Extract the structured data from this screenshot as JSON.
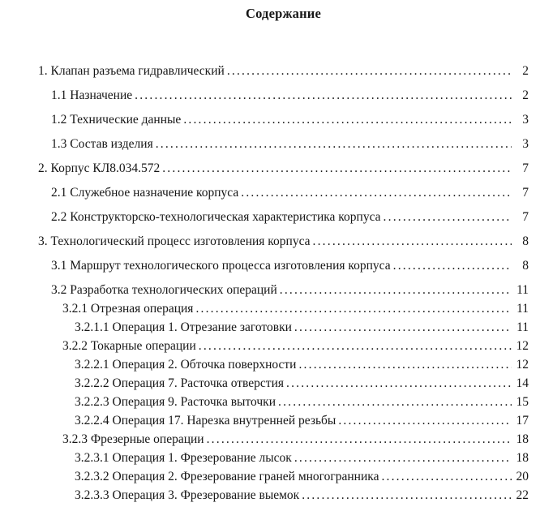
{
  "theme": {
    "text_color": "#161616",
    "background_color": "#ffffff"
  },
  "document": {
    "title": "Содержание",
    "toc": [
      {
        "label": "1. Клапан разъема гидравлический",
        "page": "2",
        "level": 1,
        "group": "wide"
      },
      {
        "label": "1.1 Назначение",
        "page": "2",
        "level": 2,
        "group": "wide"
      },
      {
        "label": "1.2 Технические данные",
        "page": "3",
        "level": 2,
        "group": "wide"
      },
      {
        "label": "1.3 Состав изделия",
        "page": "3",
        "level": 2,
        "group": "wide"
      },
      {
        "label": "2. Корпус КЛ8.034.572",
        "page": "7",
        "level": 1,
        "group": "wide"
      },
      {
        "label": "2.1 Служебное назначение корпуса",
        "page": "7",
        "level": 2,
        "group": "wide"
      },
      {
        "label": "2.2 Конструкторско-технологическая характеристика корпуса",
        "page": "7",
        "level": 2,
        "group": "wide"
      },
      {
        "label": "3. Технологический процесс изготовления корпуса",
        "page": "8",
        "level": 1,
        "group": "wide"
      },
      {
        "label": "3.1 Маршрут технологического процесса изготовления корпуса",
        "page": "8",
        "level": 2,
        "group": "wide"
      },
      {
        "label": "3.2 Разработка технологических операций",
        "page": "11",
        "level": 2,
        "group": "tight"
      },
      {
        "label": "3.2.1 Отрезная операция",
        "page": "11",
        "level": 3,
        "group": "tight"
      },
      {
        "label": "3.2.1.1 Операция 1. Отрезание заготовки",
        "page": "11",
        "level": 4,
        "group": "tight"
      },
      {
        "label": "3.2.2 Токарные операции",
        "page": "12",
        "level": 3,
        "group": "tight"
      },
      {
        "label": "3.2.2.1 Операция 2. Обточка поверхности",
        "page": "12",
        "level": 4,
        "group": "tight"
      },
      {
        "label": "3.2.2.2 Операция 7. Расточка отверстия",
        "page": "14",
        "level": 4,
        "group": "tight"
      },
      {
        "label": "3.2.2.3 Операция 9. Расточка выточки",
        "page": "15",
        "level": 4,
        "group": "tight"
      },
      {
        "label": "3.2.2.4 Операция 17. Нарезка внутренней резьбы",
        "page": "17",
        "level": 4,
        "group": "tight"
      },
      {
        "label": "3.2.3 Фрезерные операции",
        "page": "18",
        "level": 3,
        "group": "tight"
      },
      {
        "label": "3.2.3.1 Операция 1. Фрезерование лысок",
        "page": "18",
        "level": 4,
        "group": "tight"
      },
      {
        "label": "3.2.3.2 Операция 2. Фрезерование граней многогранника",
        "page": "20",
        "level": 4,
        "group": "tight"
      },
      {
        "label": "3.2.3.3 Операция 3. Фрезерование выемок",
        "page": "22",
        "level": 4,
        "group": "tight"
      }
    ]
  }
}
